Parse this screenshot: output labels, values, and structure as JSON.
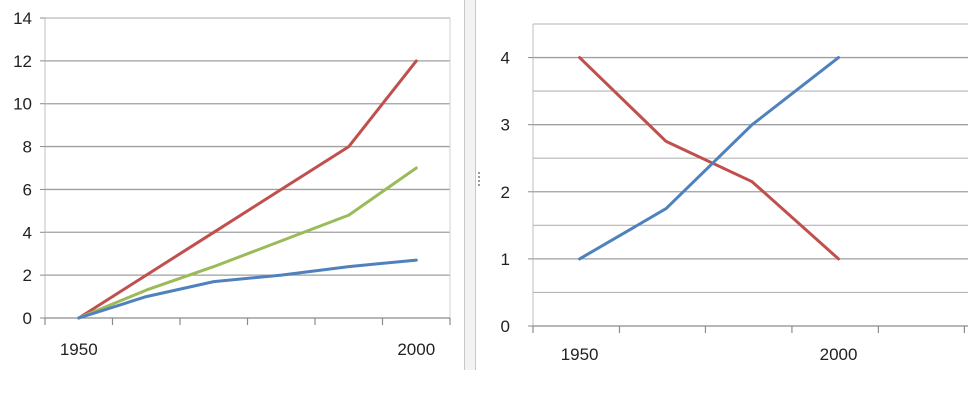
{
  "chart_data": [
    {
      "type": "line",
      "title": "",
      "xlabel": "",
      "ylabel": "",
      "x": [
        1950,
        1960,
        1970,
        1980,
        1990,
        2000
      ],
      "xticks": [
        1950,
        2000
      ],
      "xlim": [
        1945,
        2005
      ],
      "ylim": [
        0,
        14
      ],
      "yticks": [
        0,
        2,
        4,
        6,
        8,
        10,
        12,
        14
      ],
      "grid": "horizontal",
      "legend": "none",
      "series": [
        {
          "color": "#c0504d",
          "values": [
            0,
            2,
            4,
            6,
            8,
            12
          ]
        },
        {
          "color": "#9bbb59",
          "values": [
            0,
            1.3,
            2.4,
            3.6,
            4.8,
            7
          ]
        },
        {
          "color": "#4f81bd",
          "values": [
            0,
            1,
            1.7,
            2,
            2.4,
            2.7
          ]
        }
      ]
    },
    {
      "type": "line",
      "title": "",
      "xlabel": "",
      "ylabel": "",
      "x": [
        1950,
        1966.7,
        1983.3,
        2000
      ],
      "xticks": [
        1950,
        2000
      ],
      "xlim": [
        1941,
        2025
      ],
      "ylim": [
        0,
        4.5
      ],
      "yticks": [
        0,
        1,
        2,
        3,
        4
      ],
      "grid": "horizontal",
      "legend": "none",
      "series": [
        {
          "color": "#c0504d",
          "values": [
            4,
            2.75,
            2.15,
            1
          ]
        },
        {
          "color": "#4f81bd",
          "values": [
            1,
            1.75,
            3,
            4
          ]
        }
      ]
    }
  ]
}
